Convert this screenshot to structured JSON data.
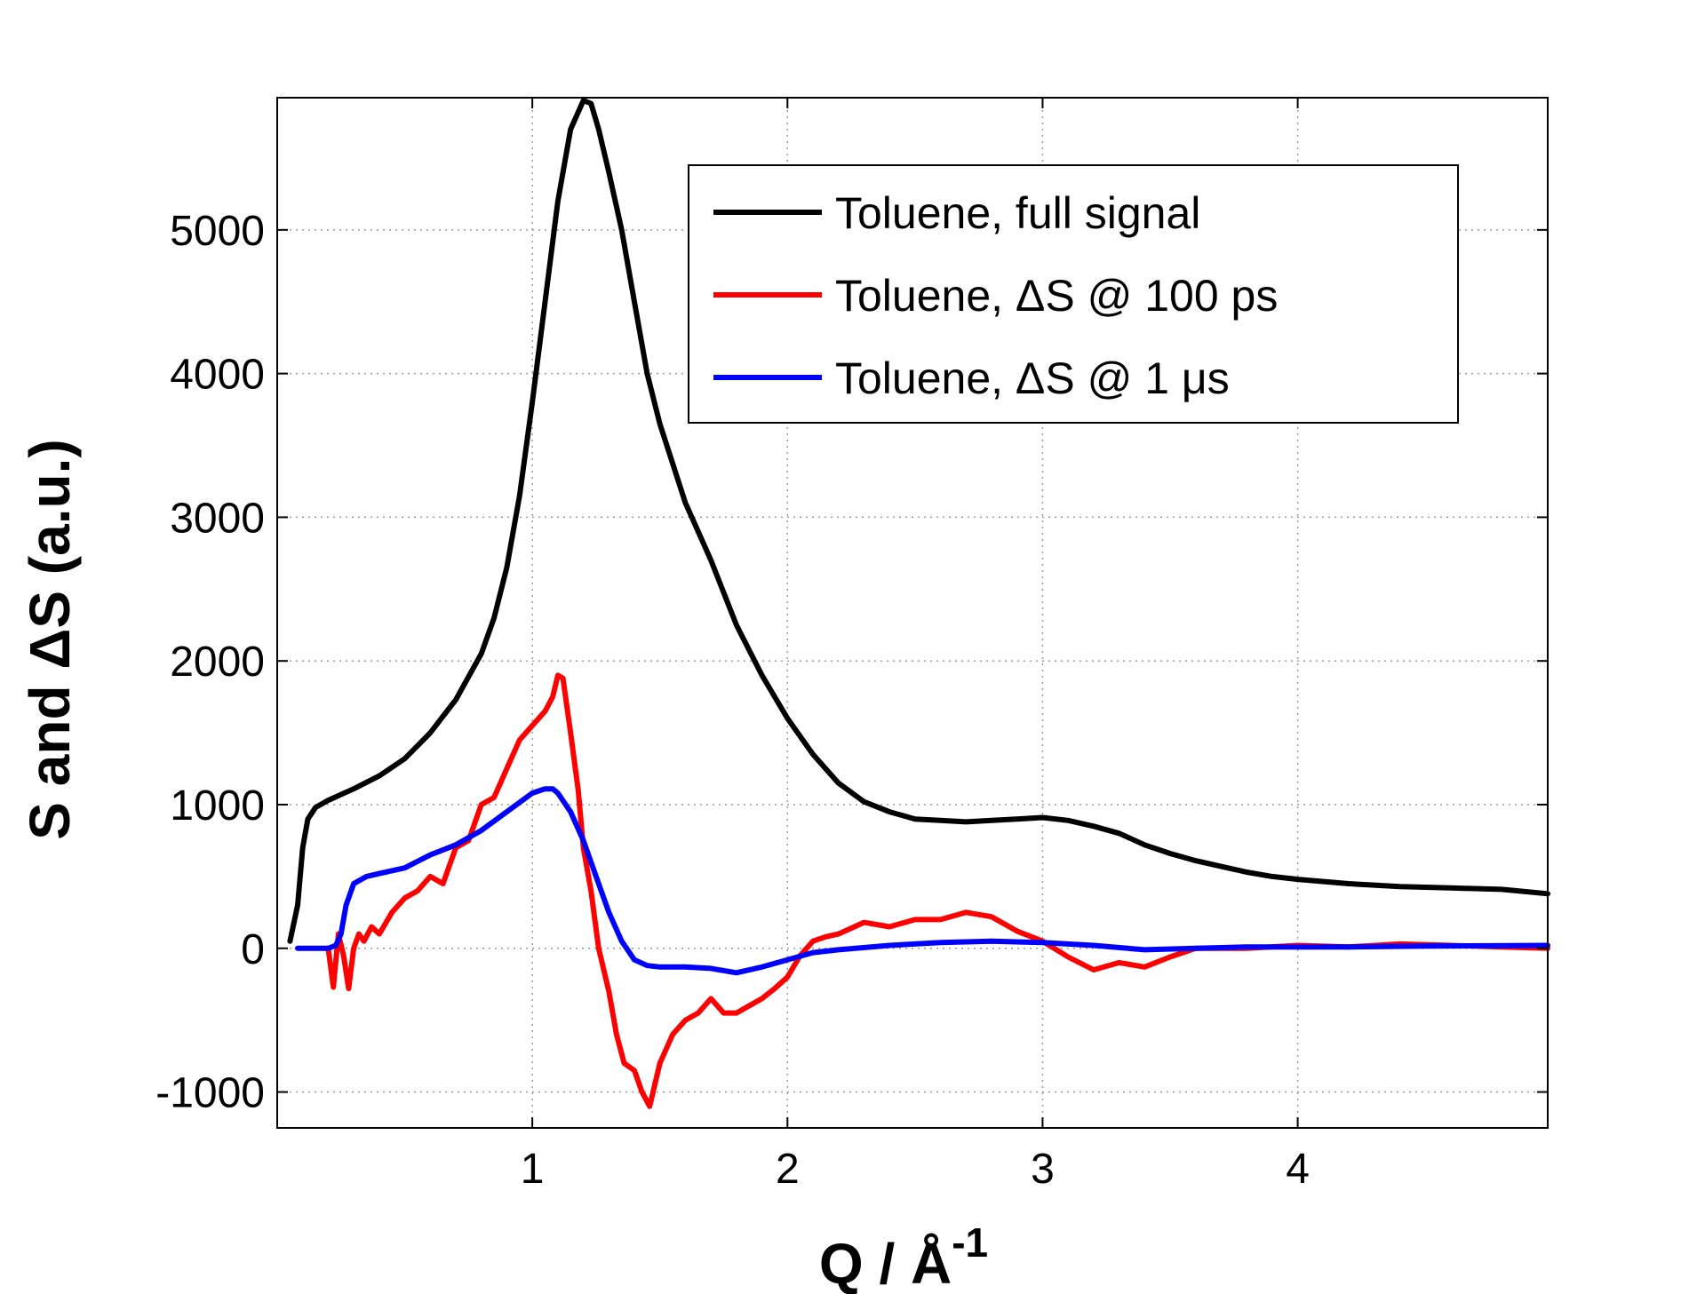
{
  "chart_data": {
    "type": "line",
    "xlabel": "Q / Å",
    "xlabel_superscript": "-1",
    "ylabel": "S and ΔS (a.u.)",
    "xlim": [
      0.0,
      4.98
    ],
    "ylim": [
      -1250,
      5920
    ],
    "xticks": [
      1,
      2,
      3,
      4
    ],
    "yticks": [
      -1000,
      0,
      1000,
      2000,
      3000,
      4000,
      5000
    ],
    "xtick_labels": [
      "1",
      "2",
      "3",
      "4"
    ],
    "ytick_labels": [
      "-1000",
      "0",
      "1000",
      "2000",
      "3000",
      "4000",
      "5000"
    ],
    "grid": true,
    "legend_position": "top-right",
    "series": [
      {
        "name": "Toluene, full signal",
        "color": "#000000",
        "x": [
          0.05,
          0.08,
          0.1,
          0.12,
          0.15,
          0.2,
          0.3,
          0.4,
          0.5,
          0.6,
          0.7,
          0.8,
          0.85,
          0.9,
          0.95,
          1.0,
          1.05,
          1.1,
          1.15,
          1.2,
          1.23,
          1.26,
          1.3,
          1.35,
          1.4,
          1.45,
          1.5,
          1.6,
          1.7,
          1.8,
          1.9,
          2.0,
          2.1,
          2.2,
          2.3,
          2.4,
          2.5,
          2.6,
          2.7,
          2.8,
          2.9,
          3.0,
          3.1,
          3.2,
          3.3,
          3.4,
          3.5,
          3.6,
          3.7,
          3.8,
          3.9,
          4.0,
          4.2,
          4.4,
          4.6,
          4.8,
          4.98
        ],
        "y": [
          50,
          300,
          700,
          900,
          980,
          1030,
          1110,
          1200,
          1320,
          1500,
          1730,
          2050,
          2300,
          2650,
          3150,
          3800,
          4500,
          5200,
          5700,
          5900,
          5880,
          5700,
          5400,
          5000,
          4500,
          4000,
          3650,
          3100,
          2700,
          2250,
          1900,
          1600,
          1350,
          1150,
          1020,
          950,
          900,
          890,
          880,
          890,
          900,
          910,
          890,
          850,
          800,
          720,
          660,
          610,
          570,
          530,
          500,
          480,
          450,
          430,
          420,
          410,
          380
        ]
      },
      {
        "name": "Toluene, ΔS @ 100 ps",
        "color": "#ff0000",
        "x": [
          0.2,
          0.22,
          0.24,
          0.26,
          0.28,
          0.3,
          0.32,
          0.34,
          0.37,
          0.4,
          0.45,
          0.5,
          0.55,
          0.6,
          0.65,
          0.7,
          0.75,
          0.8,
          0.85,
          0.9,
          0.95,
          1.0,
          1.05,
          1.08,
          1.1,
          1.12,
          1.15,
          1.18,
          1.2,
          1.23,
          1.26,
          1.3,
          1.33,
          1.36,
          1.4,
          1.43,
          1.46,
          1.5,
          1.55,
          1.6,
          1.65,
          1.7,
          1.75,
          1.8,
          1.85,
          1.9,
          1.95,
          2.0,
          2.05,
          2.1,
          2.15,
          2.2,
          2.3,
          2.4,
          2.5,
          2.6,
          2.7,
          2.8,
          2.9,
          3.0,
          3.1,
          3.2,
          3.3,
          3.4,
          3.5,
          3.6,
          3.8,
          4.0,
          4.2,
          4.4,
          4.6,
          4.8,
          4.98
        ],
        "y": [
          0,
          -270,
          100,
          -50,
          -280,
          0,
          100,
          50,
          150,
          100,
          250,
          350,
          400,
          500,
          450,
          700,
          750,
          1000,
          1050,
          1250,
          1450,
          1550,
          1650,
          1750,
          1900,
          1880,
          1500,
          1100,
          700,
          400,
          0,
          -300,
          -600,
          -800,
          -850,
          -1000,
          -1100,
          -800,
          -600,
          -500,
          -450,
          -350,
          -450,
          -450,
          -400,
          -350,
          -280,
          -200,
          -50,
          50,
          80,
          100,
          180,
          150,
          200,
          200,
          250,
          220,
          120,
          50,
          -60,
          -150,
          -100,
          -130,
          -60,
          0,
          0,
          20,
          10,
          30,
          20,
          10,
          0
        ]
      },
      {
        "name": "Toluene, ΔS @ 1 μs",
        "color": "#0000ff",
        "x": [
          0.08,
          0.15,
          0.2,
          0.23,
          0.25,
          0.27,
          0.3,
          0.35,
          0.4,
          0.5,
          0.6,
          0.7,
          0.8,
          0.9,
          1.0,
          1.05,
          1.08,
          1.1,
          1.15,
          1.2,
          1.25,
          1.3,
          1.35,
          1.4,
          1.45,
          1.5,
          1.6,
          1.7,
          1.8,
          1.9,
          2.0,
          2.1,
          2.2,
          2.4,
          2.6,
          2.8,
          3.0,
          3.2,
          3.4,
          3.6,
          3.8,
          4.0,
          4.2,
          4.5,
          4.98
        ],
        "y": [
          0,
          0,
          0,
          20,
          100,
          300,
          450,
          500,
          520,
          560,
          650,
          720,
          820,
          950,
          1080,
          1110,
          1110,
          1080,
          950,
          750,
          500,
          250,
          50,
          -80,
          -120,
          -130,
          -130,
          -140,
          -170,
          -130,
          -80,
          -30,
          -10,
          20,
          40,
          50,
          40,
          20,
          -10,
          0,
          10,
          10,
          10,
          15,
          20
        ]
      }
    ]
  }
}
